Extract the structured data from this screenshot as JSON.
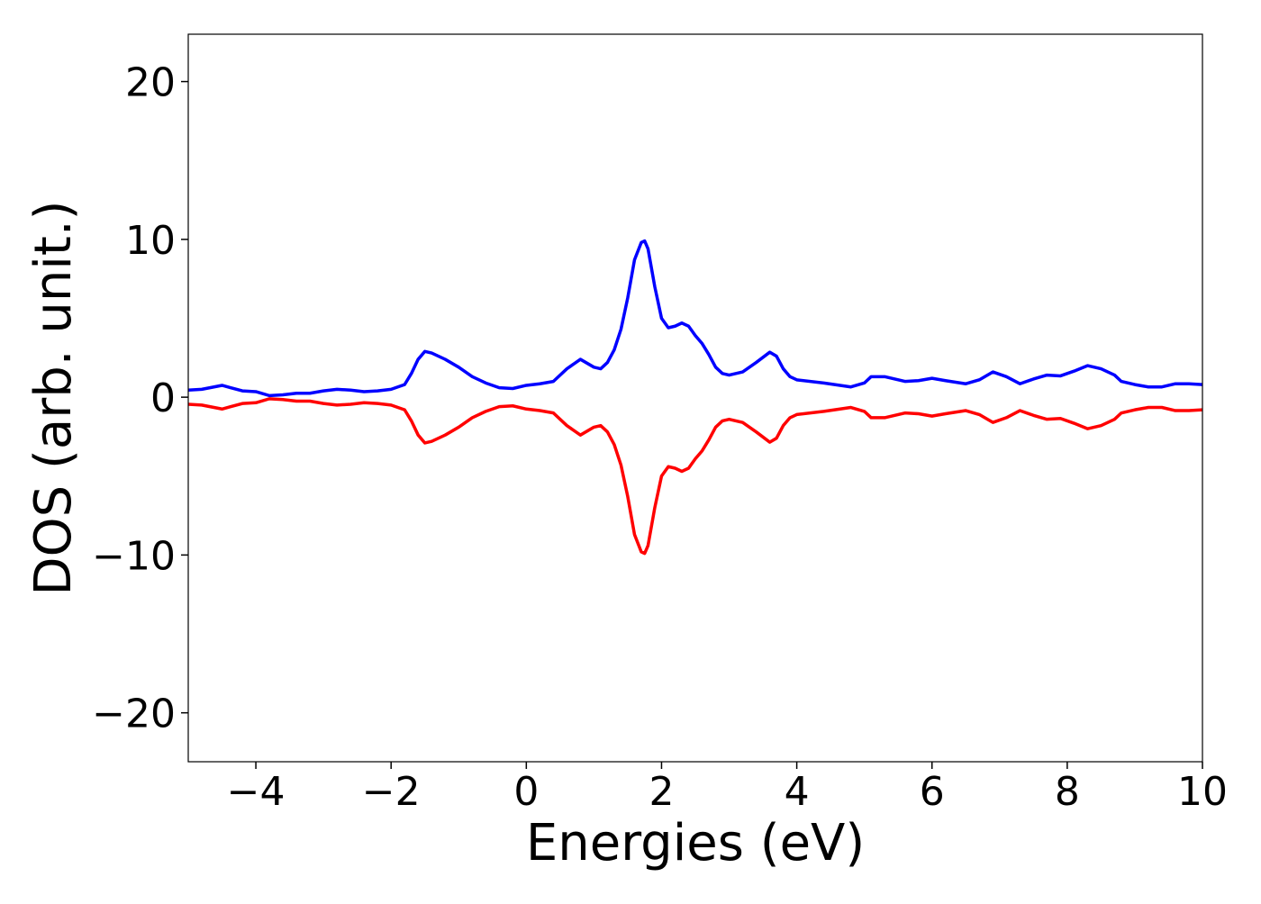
{
  "chart_data": {
    "type": "line",
    "xlabel": "Energies (eV)",
    "ylabel": "DOS (arb. unit.)",
    "x": [
      -5,
      -4.8,
      -4.5,
      -4.2,
      -4,
      -3.8,
      -3.6,
      -3.4,
      -3.2,
      -3,
      -2.8,
      -2.6,
      -2.4,
      -2.2,
      -2,
      -1.8,
      -1.7,
      -1.6,
      -1.5,
      -1.4,
      -1.2,
      -1,
      -0.8,
      -0.6,
      -0.4,
      -0.2,
      0,
      0.2,
      0.4,
      0.6,
      0.8,
      1,
      1.1,
      1.2,
      1.3,
      1.4,
      1.5,
      1.6,
      1.7,
      1.75,
      1.8,
      1.9,
      2,
      2.1,
      2.2,
      2.3,
      2.4,
      2.5,
      2.6,
      2.7,
      2.8,
      2.9,
      3,
      3.2,
      3.4,
      3.6,
      3.7,
      3.8,
      3.9,
      4,
      4.4,
      4.8,
      5,
      5.1,
      5.3,
      5.6,
      5.8,
      6,
      6.2,
      6.5,
      6.7,
      6.9,
      7.1,
      7.3,
      7.5,
      7.7,
      7.9,
      8.1,
      8.3,
      8.5,
      8.7,
      8.8,
      9,
      9.2,
      9.4,
      9.6,
      9.8,
      10
    ],
    "series": [
      {
        "color": "#0000ff",
        "values": [
          0.45,
          0.5,
          0.75,
          0.4,
          0.35,
          0.1,
          0.15,
          0.25,
          0.25,
          0.4,
          0.5,
          0.45,
          0.35,
          0.4,
          0.5,
          0.8,
          1.5,
          2.4,
          2.9,
          2.8,
          2.4,
          1.9,
          1.3,
          0.9,
          0.6,
          0.55,
          0.75,
          0.85,
          1.0,
          1.8,
          2.4,
          1.9,
          1.8,
          2.2,
          3.0,
          4.3,
          6.3,
          8.7,
          9.8,
          9.9,
          9.4,
          7.0,
          5.0,
          4.4,
          4.5,
          4.7,
          4.5,
          3.9,
          3.4,
          2.7,
          1.9,
          1.5,
          1.4,
          1.6,
          2.2,
          2.85,
          2.6,
          1.8,
          1.3,
          1.1,
          0.9,
          0.65,
          0.9,
          1.3,
          1.3,
          1.0,
          1.05,
          1.2,
          1.05,
          0.85,
          1.1,
          1.6,
          1.3,
          0.85,
          1.15,
          1.4,
          1.35,
          1.65,
          2.0,
          1.8,
          1.4,
          1.0,
          0.8,
          0.65,
          0.65,
          0.85,
          0.85,
          0.8
        ]
      },
      {
        "color": "#ff0000",
        "values": [
          -0.45,
          -0.5,
          -0.75,
          -0.4,
          -0.35,
          -0.1,
          -0.15,
          -0.25,
          -0.25,
          -0.4,
          -0.5,
          -0.45,
          -0.35,
          -0.4,
          -0.5,
          -0.8,
          -1.5,
          -2.4,
          -2.9,
          -2.8,
          -2.4,
          -1.9,
          -1.3,
          -0.9,
          -0.6,
          -0.55,
          -0.75,
          -0.85,
          -1.0,
          -1.8,
          -2.4,
          -1.9,
          -1.8,
          -2.2,
          -3.0,
          -4.3,
          -6.3,
          -8.7,
          -9.8,
          -9.9,
          -9.4,
          -7.0,
          -5.0,
          -4.4,
          -4.5,
          -4.7,
          -4.5,
          -3.9,
          -3.4,
          -2.7,
          -1.9,
          -1.5,
          -1.4,
          -1.6,
          -2.2,
          -2.85,
          -2.6,
          -1.8,
          -1.3,
          -1.1,
          -0.9,
          -0.65,
          -0.9,
          -1.3,
          -1.3,
          -1.0,
          -1.05,
          -1.2,
          -1.05,
          -0.85,
          -1.1,
          -1.6,
          -1.3,
          -0.85,
          -1.15,
          -1.4,
          -1.35,
          -1.65,
          -2.0,
          -1.8,
          -1.4,
          -1.0,
          -0.8,
          -0.65,
          -0.65,
          -0.85,
          -0.85,
          -0.8
        ]
      }
    ],
    "xlim": [
      -5,
      10
    ],
    "xticks": [
      {
        "value": -4,
        "label": "−4"
      },
      {
        "value": -2,
        "label": "−2"
      },
      0,
      2,
      4,
      6,
      8,
      10
    ],
    "ylim": [
      -23.1,
      23
    ],
    "yticks": [
      {
        "value": -20,
        "label": "−20"
      },
      {
        "value": -10,
        "label": "−10"
      },
      0,
      10,
      20
    ]
  }
}
